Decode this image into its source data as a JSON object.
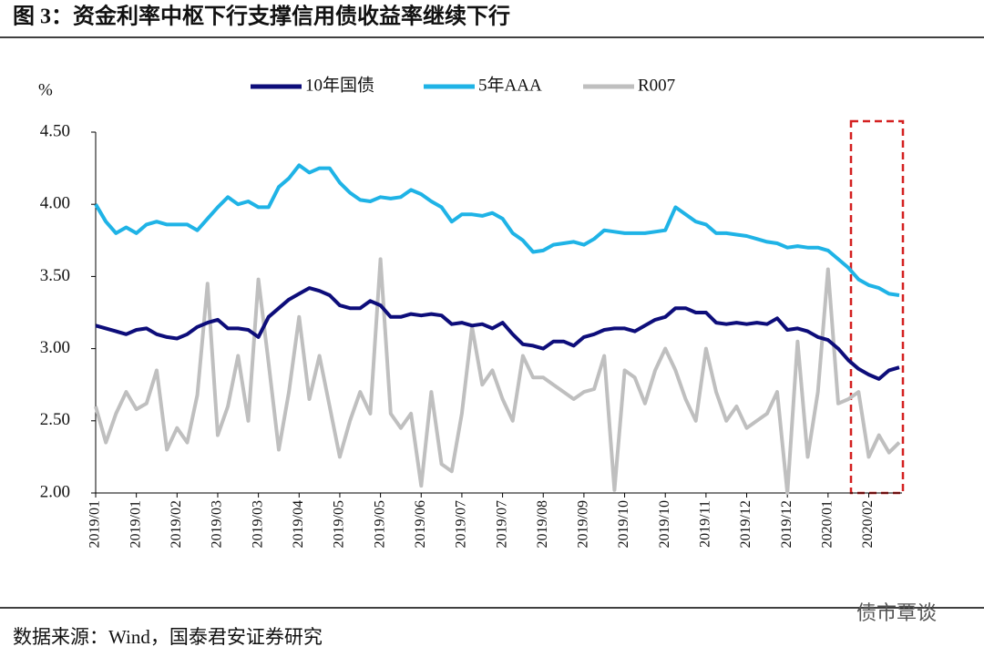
{
  "title": "图 3：资金利率中枢下行支撑信用债收益率继续下行",
  "source": "数据来源：Wind，国泰君安证券研究",
  "watermark": "债市覃谈",
  "chart_data": {
    "type": "line",
    "y_label": "%",
    "categories": [
      "2019/01",
      null,
      null,
      null,
      "2019/01",
      null,
      null,
      null,
      "2019/02",
      null,
      null,
      null,
      "2019/03",
      null,
      null,
      null,
      "2019/03",
      null,
      null,
      null,
      "2019/04",
      null,
      null,
      null,
      "2019/05",
      null,
      null,
      null,
      "2019/05",
      null,
      null,
      null,
      "2019/06",
      null,
      null,
      null,
      "2019/07",
      null,
      null,
      null,
      "2019/07",
      null,
      null,
      null,
      "2019/08",
      null,
      null,
      null,
      "2019/09",
      null,
      null,
      null,
      "2019/10",
      null,
      null,
      null,
      "2019/10",
      null,
      null,
      null,
      "2019/11",
      null,
      null,
      null,
      "2019/12",
      null,
      null,
      null,
      "2019/12",
      null,
      null,
      null,
      "2020/01",
      null,
      null,
      null,
      "2020/02",
      null,
      null,
      null
    ],
    "series": [
      {
        "name": "10年国债",
        "color": "#0d0d7a",
        "values": [
          3.16,
          3.14,
          3.12,
          3.1,
          3.13,
          3.14,
          3.1,
          3.08,
          3.07,
          3.1,
          3.15,
          3.18,
          3.2,
          3.14,
          3.14,
          3.13,
          3.08,
          3.22,
          3.28,
          3.34,
          3.38,
          3.42,
          3.4,
          3.37,
          3.3,
          3.28,
          3.28,
          3.33,
          3.3,
          3.22,
          3.22,
          3.24,
          3.23,
          3.24,
          3.23,
          3.17,
          3.18,
          3.16,
          3.17,
          3.14,
          3.18,
          3.1,
          3.03,
          3.02,
          3.0,
          3.05,
          3.05,
          3.02,
          3.08,
          3.1,
          3.13,
          3.14,
          3.14,
          3.12,
          3.16,
          3.2,
          3.22,
          3.28,
          3.28,
          3.25,
          3.25,
          3.18,
          3.17,
          3.18,
          3.17,
          3.18,
          3.17,
          3.21,
          3.13,
          3.14,
          3.12,
          3.08,
          3.06,
          3.0,
          2.92,
          2.86,
          2.82,
          2.79,
          2.85,
          2.87
        ]
      },
      {
        "name": "5年AAA",
        "color": "#1fb3e6",
        "values": [
          4.0,
          3.88,
          3.8,
          3.84,
          3.8,
          3.86,
          3.88,
          3.86,
          3.86,
          3.86,
          3.82,
          3.9,
          3.98,
          4.05,
          4.0,
          4.02,
          3.98,
          3.98,
          4.12,
          4.18,
          4.27,
          4.22,
          4.25,
          4.25,
          4.15,
          4.08,
          4.03,
          4.02,
          4.05,
          4.04,
          4.05,
          4.1,
          4.07,
          4.02,
          3.98,
          3.88,
          3.93,
          3.93,
          3.92,
          3.94,
          3.9,
          3.8,
          3.75,
          3.67,
          3.68,
          3.72,
          3.73,
          3.74,
          3.72,
          3.76,
          3.82,
          3.81,
          3.8,
          3.8,
          3.8,
          3.81,
          3.82,
          3.98,
          3.93,
          3.88,
          3.86,
          3.8,
          3.8,
          3.79,
          3.78,
          3.76,
          3.74,
          3.73,
          3.7,
          3.71,
          3.7,
          3.7,
          3.68,
          3.62,
          3.56,
          3.48,
          3.44,
          3.42,
          3.38,
          3.37
        ]
      },
      {
        "name": "R007",
        "color": "#bfbfbf",
        "values": [
          2.6,
          2.35,
          2.55,
          2.7,
          2.58,
          2.62,
          2.85,
          2.3,
          2.45,
          2.35,
          2.68,
          3.45,
          2.4,
          2.6,
          2.95,
          2.5,
          3.48,
          2.9,
          2.3,
          2.7,
          3.22,
          2.65,
          2.95,
          2.6,
          2.25,
          2.5,
          2.7,
          2.55,
          3.62,
          2.55,
          2.45,
          2.55,
          2.05,
          2.7,
          2.2,
          2.15,
          2.55,
          3.15,
          2.75,
          2.85,
          2.65,
          2.5,
          2.95,
          2.8,
          2.8,
          2.75,
          2.7,
          2.65,
          2.7,
          2.72,
          2.95,
          2.02,
          2.85,
          2.8,
          2.62,
          2.85,
          3.0,
          2.85,
          2.65,
          2.5,
          3.0,
          2.7,
          2.5,
          2.6,
          2.45,
          2.5,
          2.55,
          2.7,
          2.0,
          3.05,
          2.25,
          2.7,
          3.55,
          2.62,
          2.65,
          2.7,
          2.25,
          2.4,
          2.28,
          2.35
        ]
      }
    ],
    "ylim": [
      2.0,
      4.5
    ],
    "yticks": [
      {
        "value": 2.0,
        "label": "2.00"
      },
      {
        "value": 2.5,
        "label": "2.50"
      },
      {
        "value": 3.0,
        "label": "3.00"
      },
      {
        "value": 3.5,
        "label": "3.50"
      },
      {
        "value": 4.0,
        "label": "4.00"
      },
      {
        "value": 4.5,
        "label": "4.50"
      }
    ],
    "grid": false,
    "legend": "top"
  }
}
